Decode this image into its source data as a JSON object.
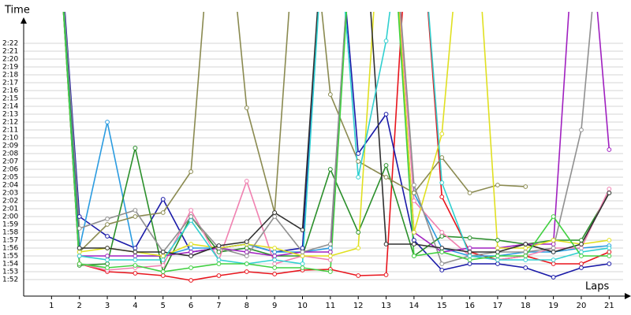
{
  "chart_data": {
    "type": "line",
    "y_label": "Time",
    "x_label": "Laps",
    "x": [
      1,
      2,
      3,
      4,
      5,
      6,
      7,
      8,
      9,
      10,
      11,
      12,
      13,
      14,
      15,
      16,
      17,
      18,
      19,
      20,
      21
    ],
    "xlim": [
      0,
      21.5
    ],
    "xticks": [
      1,
      2,
      3,
      4,
      5,
      6,
      7,
      8,
      9,
      10,
      11,
      12,
      13,
      14,
      15,
      16,
      17,
      18,
      19,
      20,
      21
    ],
    "ylim": [
      109.9,
      146
    ],
    "yticks": [
      {
        "value": 112,
        "label": "1:52"
      },
      {
        "value": 113,
        "label": "1:53"
      },
      {
        "value": 114,
        "label": "1:54"
      },
      {
        "value": 115,
        "label": "1:55"
      },
      {
        "value": 116,
        "label": "1:56"
      },
      {
        "value": 117,
        "label": "1:57"
      },
      {
        "value": 118,
        "label": "1:58"
      },
      {
        "value": 119,
        "label": "1:59"
      },
      {
        "value": 120,
        "label": "2:00"
      },
      {
        "value": 121,
        "label": "2:01"
      },
      {
        "value": 122,
        "label": "2:02"
      },
      {
        "value": 123,
        "label": "2:03"
      },
      {
        "value": 124,
        "label": "2:04"
      },
      {
        "value": 125,
        "label": "2:05"
      },
      {
        "value": 126,
        "label": "2:06"
      },
      {
        "value": 127,
        "label": "2:07"
      },
      {
        "value": 128,
        "label": "2:08"
      },
      {
        "value": 129,
        "label": "2:09"
      },
      {
        "value": 130,
        "label": "2:10"
      },
      {
        "value": 131,
        "label": "2:11"
      },
      {
        "value": 132,
        "label": "2:12"
      },
      {
        "value": 133,
        "label": "2:13"
      },
      {
        "value": 134,
        "label": "2:14"
      },
      {
        "value": 135,
        "label": "2:15"
      },
      {
        "value": 136,
        "label": "2:16"
      },
      {
        "value": 137,
        "label": "2:17"
      },
      {
        "value": 138,
        "label": "2:18"
      },
      {
        "value": 139,
        "label": "2:19"
      },
      {
        "value": 140,
        "label": "2:20"
      },
      {
        "value": 141,
        "label": "2:21"
      },
      {
        "value": 142,
        "label": "2:22"
      }
    ],
    "grid": true,
    "series": [
      {
        "color": "#e8141c",
        "values": [
          170,
          114,
          113,
          112.8,
          112.5,
          111.9,
          112.5,
          113,
          112.7,
          113.2,
          113.3,
          112.5,
          112.6,
          170,
          122.5,
          115.5,
          114.5,
          115,
          114,
          114,
          115.5
        ]
      },
      {
        "color": "#1a1aa8",
        "values": [
          170,
          120,
          117.5,
          116,
          122.2,
          115.5,
          116,
          116.5,
          115.5,
          116,
          170,
          128,
          133,
          117,
          113.2,
          114,
          114,
          113.5,
          112.3,
          113.5,
          114
        ]
      },
      {
        "color": "#2a9be0",
        "values": [
          170,
          116,
          132,
          115,
          115,
          116,
          116,
          116.5,
          115.5,
          115.5,
          116,
          170,
          170,
          123,
          116,
          115,
          115,
          115.5,
          115.5,
          116,
          116.3
        ]
      },
      {
        "color": "#2a8f2a",
        "values": [
          170,
          113.8,
          114,
          128.7,
          113,
          120,
          115.5,
          116,
          115,
          115,
          126,
          118,
          126.5,
          115,
          117.5,
          117.3,
          117,
          116.5,
          117,
          117,
          123
        ]
      },
      {
        "color": "#8a8a50",
        "values": [
          170,
          115.5,
          119,
          120,
          120.5,
          125.7,
          170,
          133.8,
          120.5,
          170,
          135.5,
          127,
          125,
          123,
          127.5,
          123,
          124,
          123.8,
          null,
          null,
          null
        ]
      },
      {
        "color": "#f080b0",
        "values": [
          170,
          114,
          113.2,
          113.5,
          113.8,
          120.8,
          114.5,
          124.5,
          114,
          115,
          114.5,
          170,
          170,
          122,
          118,
          115,
          114.5,
          115,
          116,
          116,
          123.5
        ]
      },
      {
        "color": "#a020c0",
        "values": [
          170,
          115,
          115,
          115,
          115,
          115.5,
          116,
          115.5,
          115,
          115.5,
          115.5,
          170,
          170,
          118,
          115.5,
          116,
          116,
          116.5,
          116.5,
          170,
          128.5
        ]
      },
      {
        "color": "#e0e020",
        "values": [
          170,
          115.5,
          116,
          115.5,
          115,
          116.5,
          116,
          116.5,
          116,
          115,
          115,
          116,
          170,
          118,
          130.5,
          170,
          116,
          116,
          117,
          116.5,
          117
        ]
      },
      {
        "color": "#909090",
        "values": [
          170,
          118.5,
          119.7,
          120.8,
          115.5,
          120,
          116,
          115,
          120,
          115.5,
          116.5,
          170,
          170,
          124,
          114,
          115,
          115.5,
          115.5,
          116,
          131,
          170
        ]
      },
      {
        "color": "#303030",
        "values": [
          170,
          116,
          116,
          115.5,
          115.5,
          115,
          116.3,
          116.8,
          120.5,
          118.3,
          170,
          170,
          116.5,
          116.5,
          116,
          115.5,
          115.5,
          116.5,
          115.5,
          116.5,
          123
        ]
      },
      {
        "color": "#30d0d0",
        "values": [
          170,
          115,
          114.5,
          114.5,
          114.5,
          119.5,
          114.5,
          114,
          114.5,
          114,
          170,
          125,
          142.3,
          170,
          124.3,
          115,
          114.5,
          114.5,
          114.5,
          115.5,
          116
        ]
      },
      {
        "color": "#40d040",
        "values": [
          170,
          114,
          113.5,
          113.8,
          113,
          113.5,
          114,
          114,
          113.5,
          113.5,
          113,
          170,
          170,
          115,
          115.5,
          114.5,
          115,
          115,
          120,
          115,
          115
        ]
      }
    ]
  }
}
